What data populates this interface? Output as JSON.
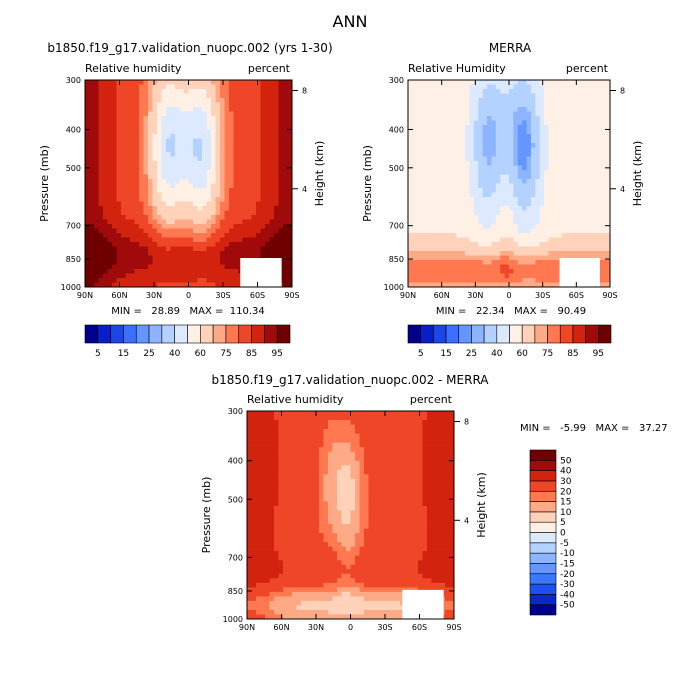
{
  "figure_title": "ANN",
  "chart_data": [
    {
      "type": "heatmap",
      "id": "model",
      "title": "b1850.f19_g17.validation_nuopc.002 (yrs 1-30)",
      "variable_label": "Relative humidity",
      "units_label": "percent",
      "ylabel": "Pressure (mb)",
      "y2label": "Height (km)",
      "x_ticks": [
        "90N",
        "60N",
        "30N",
        "0",
        "30S",
        "60S",
        "90S"
      ],
      "y_ticks": [
        "300",
        "400",
        "500",
        "700",
        "850",
        "1000"
      ],
      "y_tick_values": [
        300,
        400,
        500,
        700,
        850,
        1000
      ],
      "y2_ticks": [
        "8",
        "4"
      ],
      "y2_tick_values": [
        8,
        4
      ],
      "ylim": [
        300,
        1000
      ],
      "xlim": [
        90,
        -90
      ],
      "stats_text": "MIN =   28.89   MAX =  110.34",
      "min": 28.89,
      "max": 110.34,
      "colorbar_levels": [
        5,
        10,
        15,
        20,
        25,
        30,
        40,
        50,
        60,
        70,
        75,
        80,
        85,
        90,
        95
      ],
      "colorbar_labels": [
        "5",
        "15",
        "25",
        "40",
        "60",
        "75",
        "85",
        "95"
      ],
      "colorbar_label_levels": [
        5,
        15,
        25,
        40,
        60,
        75,
        85,
        95
      ],
      "colorbar_colors": [
        "#00008b",
        "#0a1ec8",
        "#1e46e6",
        "#3c6eff",
        "#6496ff",
        "#8cb4ff",
        "#b4d2ff",
        "#dce9ff",
        "#fff0e6",
        "#ffd2b9",
        "#ffaa87",
        "#ff7850",
        "#f04628",
        "#d2230f",
        "#a00a0a",
        "#6e0000"
      ],
      "colorbar_position": "bottom"
    },
    {
      "type": "heatmap",
      "id": "obs",
      "title": "MERRA",
      "variable_label": "Relative Humidity",
      "units_label": "percent",
      "ylabel": "Pressure (mb)",
      "y2label": "Height (km)",
      "x_ticks": [
        "90N",
        "60N",
        "30N",
        "0",
        "30S",
        "60S",
        "90S"
      ],
      "y_ticks": [
        "300",
        "400",
        "500",
        "700",
        "850",
        "1000"
      ],
      "y_tick_values": [
        300,
        400,
        500,
        700,
        850,
        1000
      ],
      "y2_ticks": [
        "8",
        "4"
      ],
      "y2_tick_values": [
        8,
        4
      ],
      "ylim": [
        300,
        1000
      ],
      "xlim": [
        90,
        -90
      ],
      "stats_text": "MIN =   22.34   MAX =   90.49",
      "min": 22.34,
      "max": 90.49,
      "colorbar_levels": [
        5,
        10,
        15,
        20,
        25,
        30,
        40,
        50,
        60,
        70,
        75,
        80,
        85,
        90,
        95
      ],
      "colorbar_labels": [
        "5",
        "15",
        "25",
        "40",
        "60",
        "75",
        "85",
        "95"
      ],
      "colorbar_label_levels": [
        5,
        15,
        25,
        40,
        60,
        75,
        85,
        95
      ],
      "colorbar_colors": [
        "#00008b",
        "#0a1ec8",
        "#1e46e6",
        "#3c6eff",
        "#6496ff",
        "#8cb4ff",
        "#b4d2ff",
        "#dce9ff",
        "#fff0e6",
        "#ffd2b9",
        "#ffaa87",
        "#ff7850",
        "#f04628",
        "#d2230f",
        "#a00a0a",
        "#6e0000"
      ],
      "colorbar_position": "bottom"
    },
    {
      "type": "heatmap",
      "id": "diff",
      "title": "b1850.f19_g17.validation_nuopc.002 - MERRA",
      "variable_label": "Relative humidity",
      "units_label": "percent",
      "ylabel": "Pressure (mb)",
      "y2label": "Height (km)",
      "x_ticks": [
        "90N",
        "60N",
        "30N",
        "0",
        "30S",
        "60S",
        "90S"
      ],
      "y_ticks": [
        "300",
        "400",
        "500",
        "700",
        "850",
        "1000"
      ],
      "y_tick_values": [
        300,
        400,
        500,
        700,
        850,
        1000
      ],
      "y2_ticks": [
        "8",
        "4"
      ],
      "y2_tick_values": [
        8,
        4
      ],
      "ylim": [
        300,
        1000
      ],
      "xlim": [
        90,
        -90
      ],
      "stats_text": "MIN =   -5.99   MAX =   37.27",
      "min": -5.99,
      "max": 37.27,
      "colorbar_levels": [
        -50,
        -40,
        -30,
        -20,
        -15,
        -10,
        -5,
        0,
        5,
        10,
        15,
        20,
        30,
        40,
        50
      ],
      "colorbar_labels": [
        "50",
        "40",
        "30",
        "20",
        "15",
        "10",
        "5",
        "0",
        "-5",
        "-10",
        "-15",
        "-20",
        "-30",
        "-40",
        "-50"
      ],
      "colorbar_colors": [
        "#00008b",
        "#0a28c8",
        "#1e50f0",
        "#3c78ff",
        "#6496ff",
        "#8cb4ff",
        "#b4d2ff",
        "#dce9ff",
        "#fff0e6",
        "#ffd2b9",
        "#ffaa87",
        "#ff7850",
        "#f04628",
        "#d2230f",
        "#a00a0a",
        "#6e0000"
      ],
      "colorbar_position": "right"
    }
  ]
}
